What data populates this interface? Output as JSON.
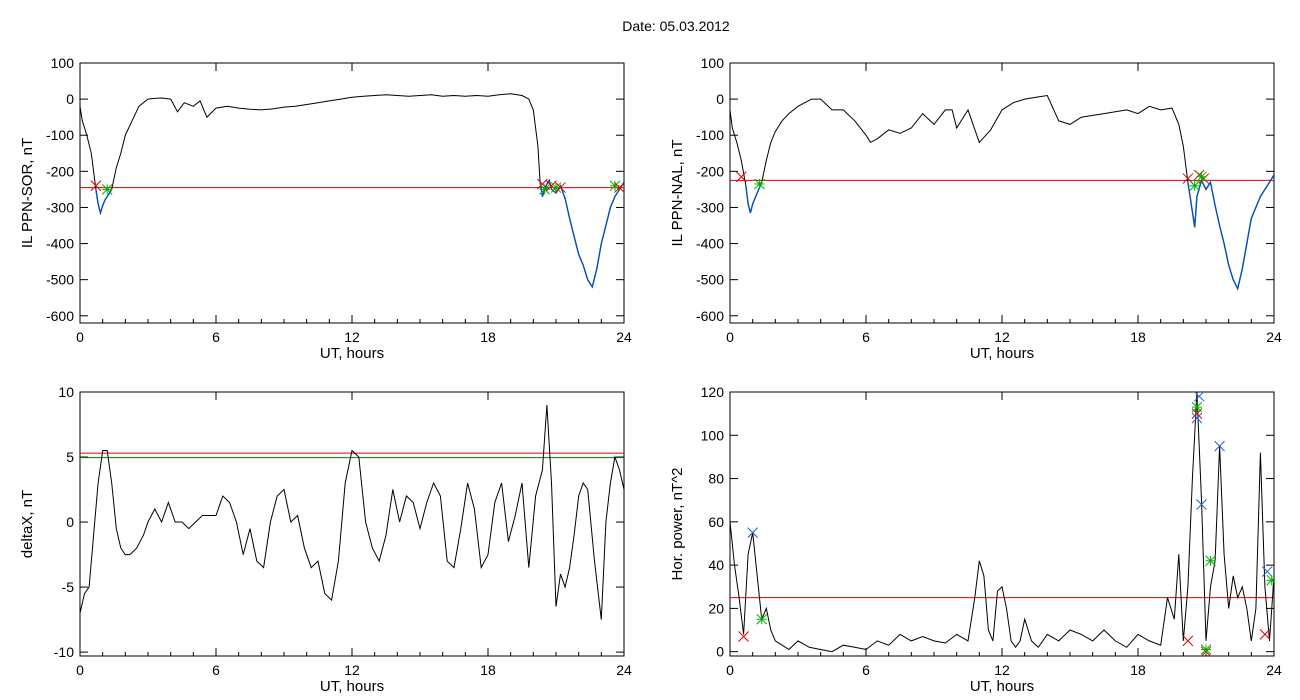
{
  "page": {
    "date_label": "Date:",
    "date_value": "05.03.2012"
  },
  "colors": {
    "trace": "#000000",
    "threshold_red": "#e00000",
    "threshold_green": "#008000",
    "highlight_blue": "#0050c0",
    "marker_red": "#e00000",
    "marker_green": "#00b000",
    "marker_blue": "#2060d0"
  },
  "chart_data": [
    {
      "type": "line",
      "id": "sor",
      "xlabel": "UT, hours",
      "ylabel": "IL PPN-SOR, nT",
      "xlim": [
        0,
        24
      ],
      "ylim": [
        -620,
        100
      ],
      "xticks": [
        0,
        6,
        12,
        18,
        24
      ],
      "yticks": [
        100,
        0,
        -100,
        -200,
        -300,
        -400,
        -500,
        -600
      ],
      "grid": false,
      "thresholds": [
        {
          "y": -245,
          "color": "red"
        }
      ],
      "x": [
        0,
        0.1,
        0.3,
        0.5,
        0.7,
        0.8,
        0.9,
        1.0,
        1.1,
        1.2,
        1.4,
        1.6,
        1.8,
        2.0,
        2.3,
        2.6,
        3.0,
        3.3,
        3.6,
        4.0,
        4.3,
        4.6,
        5.0,
        5.3,
        5.6,
        6.0,
        6.5,
        7.0,
        7.5,
        8.0,
        8.5,
        9.0,
        9.5,
        10.0,
        10.5,
        11.0,
        11.5,
        12.0,
        12.5,
        13.0,
        13.5,
        14.0,
        14.5,
        15.0,
        15.5,
        16.0,
        16.5,
        17.0,
        17.5,
        18.0,
        18.5,
        19.0,
        19.5,
        19.8,
        20.0,
        20.2,
        20.3,
        20.4,
        20.5,
        20.6,
        20.7,
        20.8,
        21.0,
        21.2,
        21.4,
        21.6,
        21.8,
        22.0,
        22.2,
        22.4,
        22.6,
        22.8,
        23.0,
        23.2,
        23.4,
        23.6,
        23.8,
        24.0
      ],
      "y": [
        -20,
        -60,
        -100,
        -150,
        -250,
        -290,
        -315,
        -295,
        -280,
        -270,
        -250,
        -190,
        -150,
        -100,
        -60,
        -20,
        0,
        2,
        3,
        0,
        -35,
        -10,
        -20,
        -5,
        -50,
        -25,
        -20,
        -25,
        -28,
        -30,
        -27,
        -22,
        -20,
        -15,
        -10,
        -5,
        0,
        5,
        8,
        10,
        12,
        10,
        8,
        10,
        12,
        8,
        10,
        8,
        10,
        8,
        12,
        15,
        10,
        0,
        -30,
        -130,
        -230,
        -270,
        -250,
        -235,
        -225,
        -250,
        -260,
        -240,
        -275,
        -330,
        -380,
        -430,
        -460,
        -500,
        -520,
        -470,
        -400,
        -350,
        -300,
        -270,
        -250,
        -230
      ],
      "highlight_ranges": [
        [
          0.7,
          1.4
        ],
        [
          20.3,
          24
        ]
      ],
      "markers": [
        {
          "x": 0.7,
          "y": -240,
          "kind": "x",
          "color": "red"
        },
        {
          "x": 1.2,
          "y": -250,
          "kind": "star",
          "color": "green"
        },
        {
          "x": 20.4,
          "y": -235,
          "kind": "x",
          "color": "red"
        },
        {
          "x": 20.5,
          "y": -250,
          "kind": "star",
          "color": "green"
        },
        {
          "x": 20.8,
          "y": -240,
          "kind": "x",
          "color": "red"
        },
        {
          "x": 21.0,
          "y": -245,
          "kind": "star",
          "color": "green"
        },
        {
          "x": 21.2,
          "y": -245,
          "kind": "x",
          "color": "red"
        },
        {
          "x": 23.6,
          "y": -240,
          "kind": "star",
          "color": "green"
        },
        {
          "x": 23.8,
          "y": -245,
          "kind": "x",
          "color": "red"
        }
      ]
    },
    {
      "type": "line",
      "id": "nal",
      "xlabel": "UT, hours",
      "ylabel": "IL PPN-NAL, nT",
      "xlim": [
        0,
        24
      ],
      "ylim": [
        -620,
        100
      ],
      "xticks": [
        0,
        6,
        12,
        18,
        24
      ],
      "yticks": [
        100,
        0,
        -100,
        -200,
        -300,
        -400,
        -500,
        -600
      ],
      "grid": false,
      "thresholds": [
        {
          "y": -225,
          "color": "red"
        }
      ],
      "x": [
        0,
        0.1,
        0.3,
        0.5,
        0.7,
        0.8,
        0.9,
        1.0,
        1.2,
        1.4,
        1.6,
        1.8,
        2.0,
        2.3,
        2.6,
        3.0,
        3.3,
        3.6,
        4.0,
        4.5,
        5.0,
        5.5,
        6.0,
        6.2,
        6.5,
        7.0,
        7.5,
        8.0,
        8.5,
        9.0,
        9.5,
        9.8,
        10.0,
        10.5,
        11.0,
        11.5,
        12.0,
        12.5,
        13.0,
        13.5,
        14.0,
        14.5,
        15.0,
        15.5,
        16.0,
        16.5,
        17.0,
        17.5,
        18.0,
        18.5,
        19.0,
        19.5,
        19.8,
        20.0,
        20.2,
        20.3,
        20.5,
        20.6,
        20.8,
        21.0,
        21.2,
        21.4,
        21.6,
        21.8,
        22.0,
        22.2,
        22.4,
        22.6,
        22.8,
        23.0,
        23.2,
        23.4,
        23.6,
        23.8,
        24.0
      ],
      "y": [
        -30,
        -80,
        -120,
        -170,
        -240,
        -290,
        -315,
        -290,
        -260,
        -230,
        -170,
        -120,
        -90,
        -60,
        -40,
        -20,
        -10,
        0,
        0,
        -30,
        -30,
        -60,
        -100,
        -120,
        -110,
        -85,
        -95,
        -80,
        -40,
        -70,
        -30,
        -30,
        -80,
        -30,
        -120,
        -85,
        -30,
        -10,
        0,
        5,
        10,
        -60,
        -70,
        -50,
        -45,
        -40,
        -35,
        -30,
        -40,
        -20,
        -30,
        -25,
        -70,
        -130,
        -230,
        -270,
        -355,
        -270,
        -225,
        -250,
        -230,
        -295,
        -350,
        -400,
        -460,
        -500,
        -525,
        -470,
        -400,
        -330,
        -300,
        -270,
        -250,
        -230,
        -210
      ],
      "highlight_ranges": [
        [
          0.6,
          1.4
        ],
        [
          20.2,
          24
        ]
      ],
      "markers": [
        {
          "x": 0.5,
          "y": -215,
          "kind": "x",
          "color": "red"
        },
        {
          "x": 1.3,
          "y": -235,
          "kind": "star",
          "color": "green"
        },
        {
          "x": 20.2,
          "y": -220,
          "kind": "x",
          "color": "red"
        },
        {
          "x": 20.5,
          "y": -240,
          "kind": "star",
          "color": "green"
        },
        {
          "x": 20.7,
          "y": -210,
          "kind": "x",
          "color": "red"
        },
        {
          "x": 20.9,
          "y": -220,
          "kind": "x",
          "color": "red"
        },
        {
          "x": 20.8,
          "y": -215,
          "kind": "star",
          "color": "green"
        }
      ]
    },
    {
      "type": "line",
      "id": "deltax",
      "xlabel": "UT, hours",
      "ylabel": "deltaX, nT",
      "xlim": [
        0,
        24
      ],
      "ylim": [
        -10.3,
        10
      ],
      "xticks": [
        0,
        6,
        12,
        18,
        24
      ],
      "yticks": [
        10,
        5,
        0,
        -5,
        -10
      ],
      "grid": false,
      "thresholds": [
        {
          "y": 5.3,
          "color": "red"
        },
        {
          "y": 4.95,
          "color": "green"
        }
      ],
      "x": [
        0,
        0.2,
        0.4,
        0.6,
        0.8,
        1.0,
        1.2,
        1.4,
        1.6,
        1.8,
        2.0,
        2.2,
        2.5,
        2.8,
        3.0,
        3.3,
        3.6,
        3.9,
        4.2,
        4.5,
        4.8,
        5.1,
        5.4,
        5.7,
        6.0,
        6.3,
        6.6,
        6.9,
        7.2,
        7.5,
        7.8,
        8.1,
        8.4,
        8.7,
        9.0,
        9.3,
        9.6,
        9.9,
        10.2,
        10.5,
        10.8,
        11.1,
        11.4,
        11.7,
        12.0,
        12.3,
        12.6,
        12.9,
        13.2,
        13.5,
        13.8,
        14.1,
        14.4,
        14.7,
        15.0,
        15.3,
        15.6,
        15.9,
        16.2,
        16.5,
        16.8,
        17.1,
        17.4,
        17.7,
        18.0,
        18.3,
        18.6,
        18.9,
        19.2,
        19.5,
        19.8,
        20.1,
        20.4,
        20.6,
        20.8,
        21.0,
        21.2,
        21.4,
        21.6,
        21.8,
        22.0,
        22.2,
        22.4,
        22.7,
        23.0,
        23.2,
        23.4,
        23.6,
        23.8,
        24.0
      ],
      "y": [
        -7,
        -5.5,
        -5,
        -1,
        3,
        5.5,
        5.5,
        3,
        -0.5,
        -2,
        -2.5,
        -2.5,
        -2,
        -1,
        0,
        1,
        0,
        1.5,
        0,
        0,
        -0.5,
        0,
        0.5,
        0.5,
        0.5,
        2,
        1.5,
        0,
        -2.5,
        -0.5,
        -3,
        -3.5,
        0,
        2,
        2.5,
        0,
        0.5,
        -2,
        -3.5,
        -3,
        -5.5,
        -6,
        -3,
        3,
        5.5,
        5,
        0,
        -2,
        -3,
        -1,
        2.5,
        0,
        2,
        1.5,
        -0.5,
        1.5,
        3,
        2,
        -3,
        -3.5,
        -0.5,
        3,
        1,
        -3.5,
        -2.5,
        1.5,
        3,
        -1.5,
        0.5,
        3,
        -3.5,
        2,
        4,
        9,
        3,
        -6.5,
        -4,
        -5,
        -3.5,
        -1,
        2,
        3,
        2.5,
        -3,
        -7.5,
        0,
        3,
        5,
        4,
        2.5
      ],
      "markers": []
    },
    {
      "type": "line",
      "id": "hpower",
      "xlabel": "UT, hours",
      "ylabel": "Hor. power, nT^2",
      "xlim": [
        0,
        24
      ],
      "ylim": [
        -2,
        120
      ],
      "xticks": [
        0,
        6,
        12,
        18,
        24
      ],
      "yticks": [
        120,
        100,
        80,
        60,
        40,
        20,
        0
      ],
      "grid": false,
      "thresholds": [
        {
          "y": 25,
          "color": "red"
        }
      ],
      "x": [
        0,
        0.2,
        0.4,
        0.6,
        0.8,
        1.0,
        1.2,
        1.4,
        1.6,
        1.8,
        2.0,
        2.3,
        2.6,
        3.0,
        3.5,
        4.0,
        4.5,
        5.0,
        5.5,
        6.0,
        6.5,
        7.0,
        7.5,
        8.0,
        8.5,
        9.0,
        9.5,
        10.0,
        10.5,
        10.8,
        11.0,
        11.2,
        11.4,
        11.6,
        11.8,
        12.0,
        12.2,
        12.4,
        12.6,
        12.8,
        13.0,
        13.3,
        13.6,
        14.0,
        14.5,
        15.0,
        15.5,
        16.0,
        16.5,
        17.0,
        17.5,
        18.0,
        18.5,
        19.0,
        19.3,
        19.6,
        19.8,
        20.0,
        20.2,
        20.4,
        20.6,
        20.8,
        21.0,
        21.2,
        21.4,
        21.6,
        21.8,
        22.0,
        22.2,
        22.4,
        22.6,
        22.8,
        23.0,
        23.2,
        23.4,
        23.6,
        23.8,
        24.0
      ],
      "y": [
        60,
        40,
        25,
        8,
        45,
        55,
        35,
        15,
        20,
        10,
        5,
        3,
        1,
        5,
        2,
        1,
        0,
        3,
        2,
        1,
        5,
        3,
        8,
        5,
        7,
        5,
        4,
        8,
        5,
        25,
        42,
        35,
        10,
        5,
        28,
        30,
        20,
        5,
        2,
        5,
        15,
        5,
        2,
        8,
        5,
        10,
        8,
        5,
        10,
        5,
        2,
        8,
        5,
        3,
        25,
        15,
        45,
        5,
        30,
        80,
        120,
        70,
        5,
        30,
        42,
        95,
        45,
        20,
        35,
        25,
        30,
        20,
        5,
        20,
        92,
        30,
        5,
        35
      ],
      "markers": [
        {
          "x": 0.6,
          "y": 7,
          "kind": "x",
          "color": "red"
        },
        {
          "x": 1.0,
          "y": 55,
          "kind": "x",
          "color": "blue"
        },
        {
          "x": 1.4,
          "y": 15,
          "kind": "star",
          "color": "green"
        },
        {
          "x": 20.2,
          "y": 5,
          "kind": "x",
          "color": "red"
        },
        {
          "x": 20.6,
          "y": 110,
          "kind": "x",
          "color": "red"
        },
        {
          "x": 20.6,
          "y": 113,
          "kind": "star",
          "color": "green"
        },
        {
          "x": 20.6,
          "y": 108,
          "kind": "x",
          "color": "blue"
        },
        {
          "x": 20.7,
          "y": 118,
          "kind": "x",
          "color": "blue"
        },
        {
          "x": 20.8,
          "y": 68,
          "kind": "x",
          "color": "blue"
        },
        {
          "x": 21.0,
          "y": 0,
          "kind": "x",
          "color": "red"
        },
        {
          "x": 21.0,
          "y": 1,
          "kind": "star",
          "color": "green"
        },
        {
          "x": 21.2,
          "y": 42,
          "kind": "star",
          "color": "green"
        },
        {
          "x": 21.6,
          "y": 95,
          "kind": "x",
          "color": "blue"
        },
        {
          "x": 23.6,
          "y": 8,
          "kind": "x",
          "color": "red"
        },
        {
          "x": 23.7,
          "y": 37,
          "kind": "x",
          "color": "blue"
        },
        {
          "x": 23.9,
          "y": 33,
          "kind": "star",
          "color": "green"
        }
      ]
    }
  ]
}
